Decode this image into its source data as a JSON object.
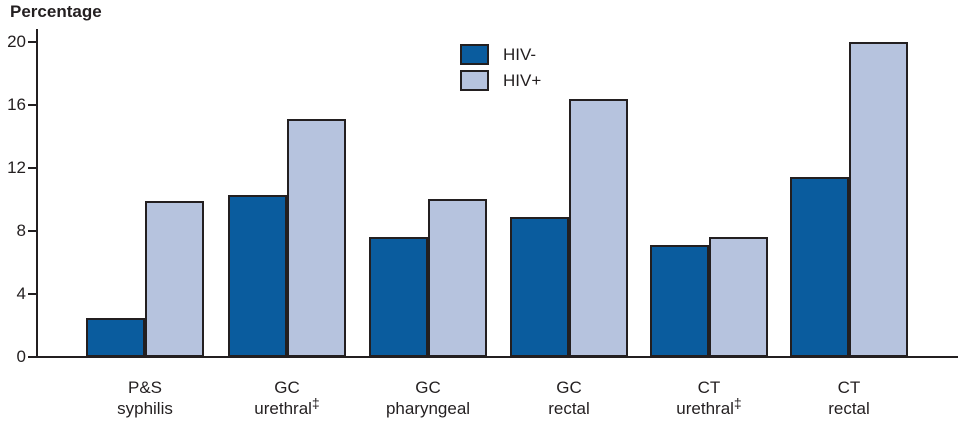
{
  "header": {
    "ylabel_title": "Percentage"
  },
  "colors": {
    "hiv_neg": "#0a5c9e",
    "hiv_pos": "#b6c3de",
    "outline": "#231f20"
  },
  "legend": {
    "items": [
      {
        "label": "HIV-",
        "color_key": "hiv_neg"
      },
      {
        "label": "HIV+",
        "color_key": "hiv_pos"
      }
    ]
  },
  "chart_data": {
    "type": "bar",
    "title": "Percentage",
    "xlabel": "",
    "ylabel": "Percentage",
    "ylim": [
      0,
      20
    ],
    "yticks": [
      0,
      4,
      8,
      12,
      16,
      20
    ],
    "grid": false,
    "legend_position": "top-center",
    "categories": [
      {
        "line1": "P&S",
        "line2": "syphilis",
        "footnote": ""
      },
      {
        "line1": "GC",
        "line2": "urethral",
        "footnote": "‡"
      },
      {
        "line1": "GC",
        "line2": "pharyngeal",
        "footnote": ""
      },
      {
        "line1": "GC",
        "line2": "rectal",
        "footnote": ""
      },
      {
        "line1": "CT",
        "line2": "urethral",
        "footnote": "‡"
      },
      {
        "line1": "CT",
        "line2": "rectal",
        "footnote": ""
      }
    ],
    "series": [
      {
        "name": "HIV-",
        "values": [
          2.5,
          10.3,
          7.6,
          8.9,
          7.1,
          11.4
        ]
      },
      {
        "name": "HIV+",
        "values": [
          9.9,
          15.1,
          10.0,
          16.4,
          7.6,
          20.0
        ]
      }
    ]
  }
}
